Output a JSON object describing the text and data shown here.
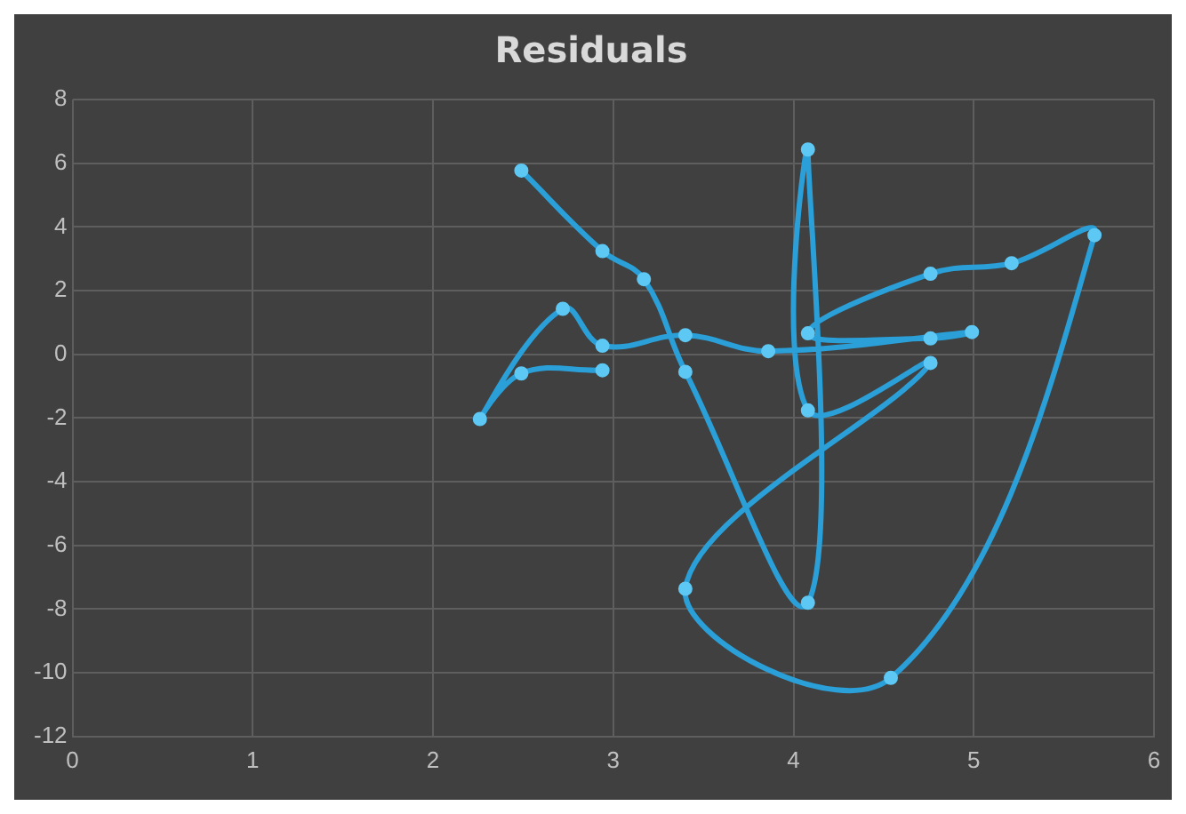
{
  "chart_data": {
    "type": "line",
    "title": "Residuals",
    "series": [
      {
        "color": "#2a9fd8",
        "x": [
          2.49,
          2.94,
          3.17,
          3.4,
          4.08,
          4.08,
          4.08,
          4.76,
          3.4,
          4.54,
          5.67,
          5.21,
          4.76,
          4.08,
          4.76,
          4.99,
          3.86,
          3.4,
          2.94,
          2.72,
          2.26,
          2.49,
          2.94
        ],
        "values": [
          5.77,
          3.24,
          2.36,
          -0.55,
          -7.8,
          6.43,
          -1.76,
          -0.27,
          -7.36,
          -10.16,
          3.74,
          2.86,
          2.53,
          0.66,
          0.5,
          0.7,
          0.1,
          0.6,
          0.27,
          1.43,
          -2.03,
          -0.6,
          -0.5
        ]
      }
    ],
    "xlim": [
      0,
      6
    ],
    "xticks": [
      0,
      1,
      2,
      3,
      4,
      5,
      6
    ],
    "ylim": [
      -12,
      8
    ],
    "yticks": [
      -12,
      -10,
      -8,
      -6,
      -4,
      -2,
      0,
      2,
      4,
      6,
      8
    ],
    "grid": true,
    "legend": false,
    "marker": "circle",
    "line_style": "solid"
  }
}
